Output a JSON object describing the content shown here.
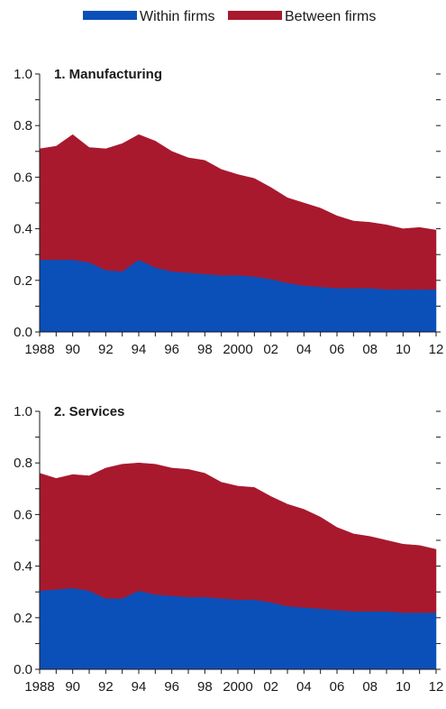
{
  "legend": [
    {
      "label": "Within firms",
      "color": "#0b50b8"
    },
    {
      "label": "Between firms",
      "color": "#a8192e"
    }
  ],
  "chart_data": [
    {
      "type": "area",
      "stacked": true,
      "title": "1. Manufacturing",
      "x": [
        1988,
        1989,
        1990,
        1991,
        1992,
        1993,
        1994,
        1995,
        1996,
        1997,
        1998,
        1999,
        2000,
        2001,
        2002,
        2003,
        2004,
        2005,
        2006,
        2007,
        2008,
        2009,
        2010,
        2011,
        2012
      ],
      "x_tick_labels": [
        "1988",
        "90",
        "92",
        "94",
        "96",
        "98",
        "2000",
        "02",
        "04",
        "06",
        "08",
        "10",
        "12"
      ],
      "x_tick_values": [
        1988,
        1990,
        1992,
        1994,
        1996,
        1998,
        2000,
        2002,
        2004,
        2006,
        2008,
        2010,
        2012
      ],
      "y_tick_labels": [
        "0.0",
        "0.2",
        "0.4",
        "0.6",
        "0.8",
        "1.0"
      ],
      "ylim": [
        0,
        1.0
      ],
      "series": [
        {
          "name": "Within firms",
          "color": "#0b50b8",
          "values": [
            0.28,
            0.28,
            0.28,
            0.27,
            0.24,
            0.235,
            0.28,
            0.25,
            0.235,
            0.23,
            0.225,
            0.22,
            0.22,
            0.215,
            0.205,
            0.19,
            0.18,
            0.175,
            0.17,
            0.17,
            0.17,
            0.165,
            0.165,
            0.165,
            0.165
          ]
        },
        {
          "name": "Between firms",
          "color": "#a8192e",
          "values": [
            0.43,
            0.44,
            0.485,
            0.445,
            0.47,
            0.495,
            0.485,
            0.49,
            0.465,
            0.445,
            0.44,
            0.41,
            0.39,
            0.38,
            0.355,
            0.33,
            0.32,
            0.305,
            0.28,
            0.26,
            0.255,
            0.25,
            0.235,
            0.24,
            0.23
          ]
        }
      ]
    },
    {
      "type": "area",
      "stacked": true,
      "title": "2. Services",
      "x": [
        1988,
        1989,
        1990,
        1991,
        1992,
        1993,
        1994,
        1995,
        1996,
        1997,
        1998,
        1999,
        2000,
        2001,
        2002,
        2003,
        2004,
        2005,
        2006,
        2007,
        2008,
        2009,
        2010,
        2011,
        2012
      ],
      "x_tick_labels": [
        "1988",
        "90",
        "92",
        "94",
        "96",
        "98",
        "2000",
        "02",
        "04",
        "06",
        "08",
        "10",
        "12"
      ],
      "x_tick_values": [
        1988,
        1990,
        1992,
        1994,
        1996,
        1998,
        2000,
        2002,
        2004,
        2006,
        2008,
        2010,
        2012
      ],
      "y_tick_labels": [
        "0.0",
        "0.2",
        "0.4",
        "0.6",
        "0.8",
        "1.0"
      ],
      "ylim": [
        0,
        1.0
      ],
      "series": [
        {
          "name": "Within firms",
          "color": "#0b50b8",
          "values": [
            0.305,
            0.31,
            0.315,
            0.305,
            0.275,
            0.275,
            0.305,
            0.29,
            0.285,
            0.28,
            0.28,
            0.275,
            0.27,
            0.27,
            0.26,
            0.245,
            0.24,
            0.235,
            0.23,
            0.225,
            0.225,
            0.225,
            0.22,
            0.22,
            0.22
          ]
        },
        {
          "name": "Between firms",
          "color": "#a8192e",
          "values": [
            0.455,
            0.43,
            0.44,
            0.445,
            0.505,
            0.52,
            0.495,
            0.505,
            0.495,
            0.495,
            0.48,
            0.45,
            0.44,
            0.435,
            0.41,
            0.395,
            0.38,
            0.355,
            0.32,
            0.3,
            0.29,
            0.275,
            0.265,
            0.26,
            0.245
          ]
        }
      ]
    }
  ]
}
